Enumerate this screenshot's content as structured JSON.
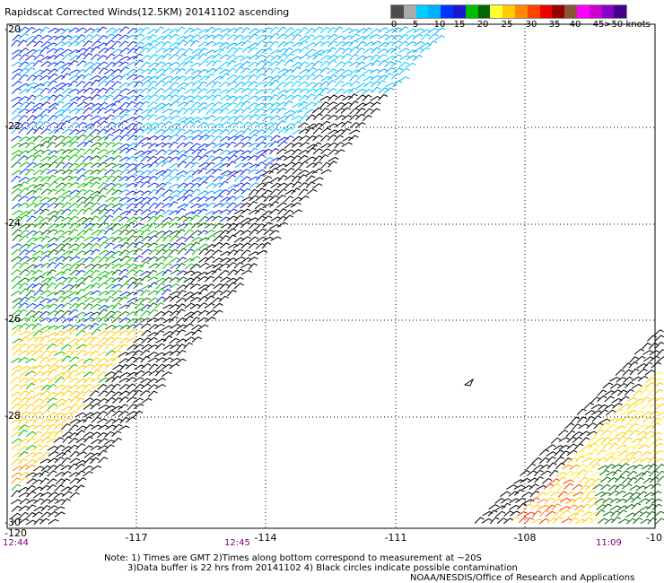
{
  "title": "Rapidscat Corrected Winds(12.5KM) 20141102 ascending",
  "legend": {
    "colors": [
      "#4d4d4d",
      "#aaaaaa",
      "#00ccff",
      "#00b0ff",
      "#0033ff",
      "#1a1acc",
      "#00bb00",
      "#006600",
      "#ffff33",
      "#ffcc00",
      "#ff8800",
      "#ff4400",
      "#ee0000",
      "#990000",
      "#885533",
      "#ff00ff",
      "#cc00cc",
      "#8800cc",
      "#440088"
    ],
    "labels": [
      "0",
      "5",
      "10",
      "15",
      "20",
      "25",
      "30",
      "35",
      "40",
      "45",
      ">50 knots"
    ]
  },
  "axes": {
    "lon_labels": [
      "-117",
      "-114",
      "-111",
      "-108",
      "-10"
    ],
    "lat_labels": [
      "-20",
      "-22",
      "-24",
      "-26",
      "-28",
      "-30"
    ],
    "corner_label": "-120"
  },
  "times": {
    "left": "12:44",
    "middle": "12:45",
    "right": "11:09"
  },
  "notes": {
    "line1": "Note: 1) Times are GMT 2)Times along bottom correspond to measurement at ~20S",
    "line2": "3)Data buffer is 22 hrs from 20141102 4) Black circles indicate possible contamination",
    "credit": "NOAA/NESDIS/Office of Research and Applications"
  }
}
